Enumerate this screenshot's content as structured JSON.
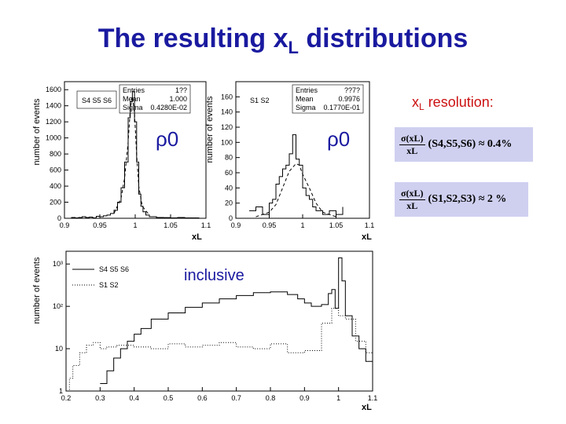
{
  "page": {
    "title_main": "The resulting x",
    "title_sub": "L",
    "title_rest": " distributions"
  },
  "annotations": {
    "rho_left": "ρ0",
    "rho_right": "ρ0",
    "inclusive": "inclusive",
    "resolution_label_main": "x",
    "resolution_label_sub": "L",
    "resolution_label_rest": " resolution:"
  },
  "formulas": [
    {
      "num": "σ(xL)",
      "den": "xL",
      "rest": "(S4,S5,S6) ≈ 0.4%"
    },
    {
      "num": "σ(xL)",
      "den": "xL",
      "rest": "(S1,S2,S3) ≈ 2 %"
    }
  ],
  "colors": {
    "title": "#1a1aa0",
    "accent_red": "#cc1111",
    "formula_bg": "#cfd0f0"
  },
  "chart_data": [
    {
      "type": "line",
      "xlabel": "xL",
      "ylabel": "number of events",
      "xlim": [
        0.9,
        1.1
      ],
      "ylim": [
        0,
        1700
      ],
      "xticks": [
        0.9,
        0.95,
        1,
        1.05,
        1.1
      ],
      "xtick_labels": [
        "0.9",
        "0.95",
        "1",
        "1.05",
        "1.1"
      ],
      "yticks": [
        0,
        200,
        400,
        600,
        800,
        1000,
        1200,
        1400,
        1600
      ],
      "ytick_labels": [
        "0",
        "200",
        "400",
        "600",
        "800",
        "1000",
        "1200",
        "1400",
        "1600"
      ],
      "legend": "S4 S5 S6",
      "stats": [
        [
          "Entries",
          "1??"
        ],
        [
          "Mean",
          "1.000"
        ],
        [
          "Sigma",
          "0.4280E-02"
        ]
      ],
      "series": [
        {
          "style": "step",
          "x": [
            0.9,
            0.905,
            0.91,
            0.915,
            0.92,
            0.925,
            0.93,
            0.935,
            0.94,
            0.945,
            0.95,
            0.955,
            0.96,
            0.965,
            0.97,
            0.975,
            0.98,
            0.985,
            0.99,
            0.993,
            0.996,
            0.999,
            1.002,
            1.005,
            1.008,
            1.011,
            1.015,
            1.02,
            1.03,
            1.04,
            1.05,
            1.06,
            1.07,
            1.08,
            1.09,
            1.1
          ],
          "y": [
            0,
            0,
            10,
            5,
            10,
            20,
            10,
            15,
            5,
            25,
            20,
            30,
            40,
            60,
            100,
            200,
            380,
            700,
            1250,
            1450,
            1580,
            1200,
            700,
            300,
            150,
            80,
            40,
            20,
            10,
            8,
            5,
            10,
            5,
            5,
            0,
            0
          ]
        },
        {
          "style": "dashed",
          "x": [
            0.97,
            0.98,
            0.985,
            0.99,
            0.993,
            0.996,
            0.999,
            1.002,
            1.005,
            1.01,
            1.02
          ],
          "y": [
            60,
            250,
            500,
            950,
            1350,
            1520,
            1300,
            800,
            400,
            150,
            40
          ]
        }
      ]
    },
    {
      "type": "line",
      "xlabel": "xL",
      "ylabel": "number of events",
      "xlim": [
        0.9,
        1.1
      ],
      "ylim": [
        0,
        180
      ],
      "xticks": [
        0.9,
        0.95,
        1,
        1.05,
        1.1
      ],
      "xtick_labels": [
        "0.9",
        "0.95",
        "1",
        "1.05",
        "1.1"
      ],
      "yticks": [
        0,
        20,
        40,
        60,
        80,
        100,
        120,
        140,
        160
      ],
      "ytick_labels": [
        "0",
        "20",
        "40",
        "60",
        "80",
        "100",
        "120",
        "140",
        "160"
      ],
      "legend": "S1 S2",
      "stats": [
        [
          "Entries",
          "??7?"
        ],
        [
          "Mean",
          "0.9976"
        ],
        [
          "Sigma",
          "0.1770E-01"
        ]
      ],
      "series": [
        {
          "style": "step",
          "x": [
            0.92,
            0.93,
            0.94,
            0.95,
            0.955,
            0.96,
            0.965,
            0.97,
            0.975,
            0.98,
            0.985,
            0.99,
            0.995,
            1.0,
            1.005,
            1.01,
            1.015,
            1.02,
            1.03,
            1.04,
            1.05,
            1.06
          ],
          "y": [
            10,
            15,
            5,
            20,
            25,
            45,
            55,
            65,
            70,
            85,
            110,
            78,
            70,
            40,
            30,
            25,
            15,
            10,
            5,
            10,
            5,
            15
          ]
        },
        {
          "style": "dashed",
          "x": [
            0.93,
            0.95,
            0.96,
            0.97,
            0.98,
            0.99,
            0.995,
            1.0,
            1.01,
            1.02,
            1.03,
            1.05
          ],
          "y": [
            2,
            8,
            18,
            40,
            62,
            72,
            70,
            58,
            40,
            20,
            8,
            2
          ]
        }
      ]
    },
    {
      "type": "line",
      "xlabel": "xL",
      "ylabel": "number of events",
      "yscale": "log",
      "xlim": [
        0.2,
        1.1
      ],
      "ylim": [
        1,
        2000
      ],
      "xticks": [
        0.2,
        0.3,
        0.4,
        0.5,
        0.6,
        0.7,
        0.8,
        0.9,
        1,
        1.1
      ],
      "xtick_labels": [
        "0.2",
        "0.3",
        "0.4",
        "0.5",
        "0.6",
        "0.7",
        "0.8",
        "0.9",
        "1",
        "1.1"
      ],
      "yticks": [
        1,
        10,
        100,
        1000
      ],
      "ytick_labels": [
        "1",
        "10",
        "10²",
        "10³"
      ],
      "legend": [
        "S4 S5 S6",
        "S1 S2"
      ],
      "series": [
        {
          "name": "S4 S5 S6",
          "style": "solid",
          "x": [
            0.3,
            0.32,
            0.34,
            0.36,
            0.38,
            0.4,
            0.42,
            0.45,
            0.5,
            0.55,
            0.6,
            0.65,
            0.7,
            0.75,
            0.8,
            0.85,
            0.88,
            0.9,
            0.92,
            0.95,
            0.97,
            0.98,
            0.99,
            1.0,
            1.01,
            1.02,
            1.04,
            1.06,
            1.08,
            1.1
          ],
          "y": [
            1.5,
            3,
            6,
            10,
            15,
            22,
            30,
            50,
            70,
            95,
            120,
            150,
            180,
            210,
            220,
            190,
            150,
            120,
            100,
            110,
            200,
            250,
            90,
            1400,
            400,
            60,
            20,
            10,
            5,
            3
          ]
        },
        {
          "name": "S1 S2",
          "style": "dotted",
          "x": [
            0.2,
            0.21,
            0.22,
            0.24,
            0.26,
            0.28,
            0.3,
            0.32,
            0.35,
            0.4,
            0.45,
            0.5,
            0.55,
            0.6,
            0.65,
            0.7,
            0.75,
            0.8,
            0.85,
            0.9,
            0.95,
            0.98,
            1.0,
            1.02,
            1.05,
            1.08,
            1.1
          ],
          "y": [
            1,
            2,
            4,
            8,
            12,
            14,
            10,
            11,
            12,
            11,
            10,
            13,
            11,
            12,
            14,
            11,
            10,
            13,
            8,
            9,
            40,
            90,
            60,
            50,
            15,
            8,
            4
          ]
        }
      ]
    }
  ]
}
